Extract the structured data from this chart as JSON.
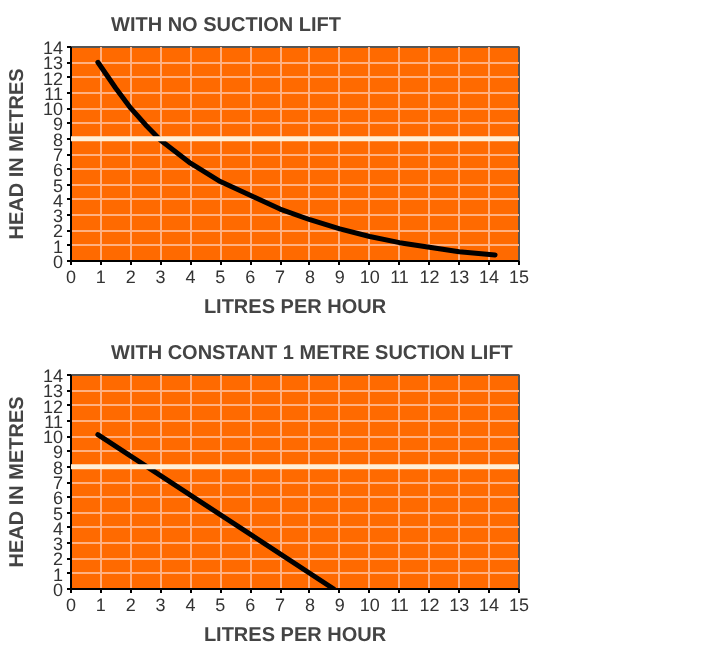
{
  "chart_data": [
    {
      "type": "line",
      "title": "WITH NO SUCTION LIFT",
      "xlabel": "LITRES PER HOUR",
      "ylabel": "HEAD IN METRES",
      "x": [
        0.9,
        1.5,
        2,
        2.5,
        3,
        4,
        5,
        6,
        7,
        8,
        9,
        10,
        11,
        12,
        13,
        14.2
      ],
      "series": [
        {
          "color": "#000000",
          "values": [
            13,
            11.3,
            10,
            8.9,
            7.9,
            6.4,
            5.2,
            4.3,
            3.4,
            2.7,
            2.1,
            1.6,
            1.2,
            0.9,
            0.6,
            0.4
          ]
        }
      ],
      "xlim": [
        0,
        15
      ],
      "ylim": [
        0,
        14
      ],
      "xticks": [
        0,
        1,
        2,
        3,
        4,
        5,
        6,
        7,
        8,
        9,
        10,
        11,
        12,
        13,
        14,
        15
      ],
      "yticks": [
        0,
        1,
        2,
        3,
        4,
        5,
        6,
        7,
        8,
        9,
        10,
        11,
        12,
        13,
        14
      ],
      "grid": true,
      "marker": "none",
      "ref_lines": [
        {
          "axis": "y",
          "value": 8,
          "color": "#fff0d8"
        }
      ]
    },
    {
      "type": "line",
      "title": "WITH CONSTANT 1 METRE SUCTION LIFT",
      "xlabel": "LITRES PER HOUR",
      "ylabel": "HEAD IN METRES",
      "x": [
        0.9,
        8.8
      ],
      "series": [
        {
          "color": "#000000",
          "values": [
            10.1,
            0
          ]
        }
      ],
      "xlim": [
        0,
        15
      ],
      "ylim": [
        0,
        14
      ],
      "xticks": [
        0,
        1,
        2,
        3,
        4,
        5,
        6,
        7,
        8,
        9,
        10,
        11,
        12,
        13,
        14,
        15
      ],
      "yticks": [
        0,
        1,
        2,
        3,
        4,
        5,
        6,
        7,
        8,
        9,
        10,
        11,
        12,
        13,
        14
      ],
      "grid": true,
      "marker": "none",
      "ref_lines": [
        {
          "axis": "y",
          "value": 8,
          "color": "#fff0d8"
        }
      ]
    }
  ]
}
